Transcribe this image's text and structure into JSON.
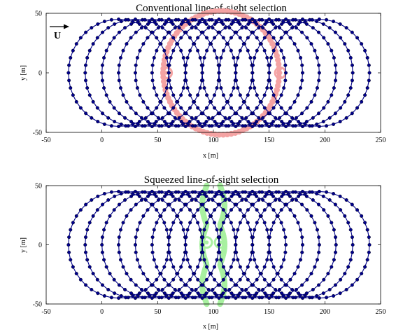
{
  "chart_data": [
    {
      "type": "scatter",
      "title": "Conventional line-of-sight selection",
      "xlabel": "x [m]",
      "ylabel": "y [m]",
      "xlim": [
        -50,
        250
      ],
      "ylim": [
        -50,
        50
      ],
      "xticks": [
        "-50",
        "0",
        "50",
        "100",
        "150",
        "200",
        "250"
      ],
      "yticks": [
        "50",
        "0",
        "-50"
      ],
      "flow_arrow_label": "U",
      "trajectory": {
        "loop_centers_x": [
          15,
          30,
          45,
          60,
          75,
          90,
          105,
          120,
          135,
          150,
          165,
          180,
          195
        ],
        "loop_radius": 45,
        "color": "#00008B"
      },
      "selection": {
        "shape": "circle",
        "center": [
          107,
          0
        ],
        "radius": 52,
        "marked_points": [
          [
            58,
            0
          ],
          [
            160,
            0
          ]
        ],
        "color": "#F4A3A3"
      }
    },
    {
      "type": "scatter",
      "title": "Squeezed line-of-sight selection",
      "xlabel": "x [m]",
      "ylabel": "y [m]",
      "xlim": [
        -50,
        250
      ],
      "ylim": [
        -50,
        50
      ],
      "xticks": [
        "-50",
        "0",
        "50",
        "100",
        "150",
        "200",
        "250"
      ],
      "yticks": [
        "50",
        "0",
        "-50"
      ],
      "trajectory": {
        "loop_centers_x": [
          15,
          30,
          45,
          60,
          75,
          90,
          105,
          120,
          135,
          150,
          165,
          180,
          195
        ],
        "loop_radius": 45,
        "color": "#00008B"
      },
      "selection": {
        "shape": "squeezed",
        "center_x": 100,
        "marked_points": [
          [
            94,
            2
          ],
          [
            106,
            2
          ]
        ],
        "color": "#A8F0A0"
      }
    }
  ]
}
